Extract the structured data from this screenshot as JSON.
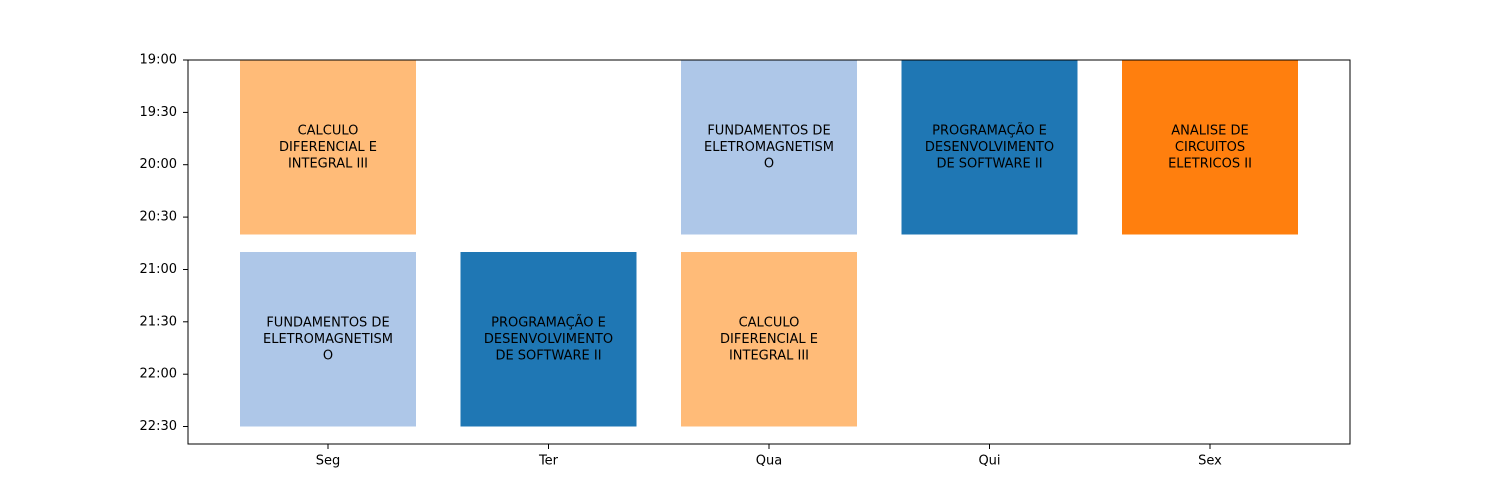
{
  "chart_data": {
    "type": "bar",
    "title": "",
    "xlabel": "",
    "ylabel": "",
    "categories": [
      "Seg",
      "Ter",
      "Qua",
      "Qui",
      "Sex"
    ],
    "y_ticks": [
      "19:00",
      "19:30",
      "20:00",
      "20:30",
      "21:00",
      "21:30",
      "22:00",
      "22:30"
    ],
    "y_range": [
      "19:00",
      "22:40"
    ],
    "y_inverted": true,
    "grid": false,
    "events": [
      {
        "day": "Seg",
        "start": "19:00",
        "end": "20:40",
        "lines": [
          "CALCULO",
          "DIFERENCIAL E",
          "INTEGRAL III"
        ],
        "color": "#ffbb78"
      },
      {
        "day": "Seg",
        "start": "20:50",
        "end": "22:30",
        "lines": [
          "FUNDAMENTOS DE",
          "ELETROMAGNETISM",
          "O"
        ],
        "color": "#aec7e8"
      },
      {
        "day": "Ter",
        "start": "20:50",
        "end": "22:30",
        "lines": [
          "PROGRAMAÇÃO E",
          "DESENVOLVIMENTO",
          "DE SOFTWARE II"
        ],
        "color": "#1f77b4"
      },
      {
        "day": "Qua",
        "start": "19:00",
        "end": "20:40",
        "lines": [
          "FUNDAMENTOS DE",
          "ELETROMAGNETISM",
          "O"
        ],
        "color": "#aec7e8"
      },
      {
        "day": "Qua",
        "start": "20:50",
        "end": "22:30",
        "lines": [
          "CALCULO",
          "DIFERENCIAL E",
          "INTEGRAL III"
        ],
        "color": "#ffbb78"
      },
      {
        "day": "Qui",
        "start": "19:00",
        "end": "20:40",
        "lines": [
          "PROGRAMAÇÃO E",
          "DESENVOLVIMENTO",
          "DE SOFTWARE II"
        ],
        "color": "#1f77b4"
      },
      {
        "day": "Sex",
        "start": "19:00",
        "end": "20:40",
        "lines": [
          "ANALISE DE",
          "CIRCUITOS",
          "ELETRICOS II"
        ],
        "color": "#ff7f0e"
      }
    ]
  }
}
